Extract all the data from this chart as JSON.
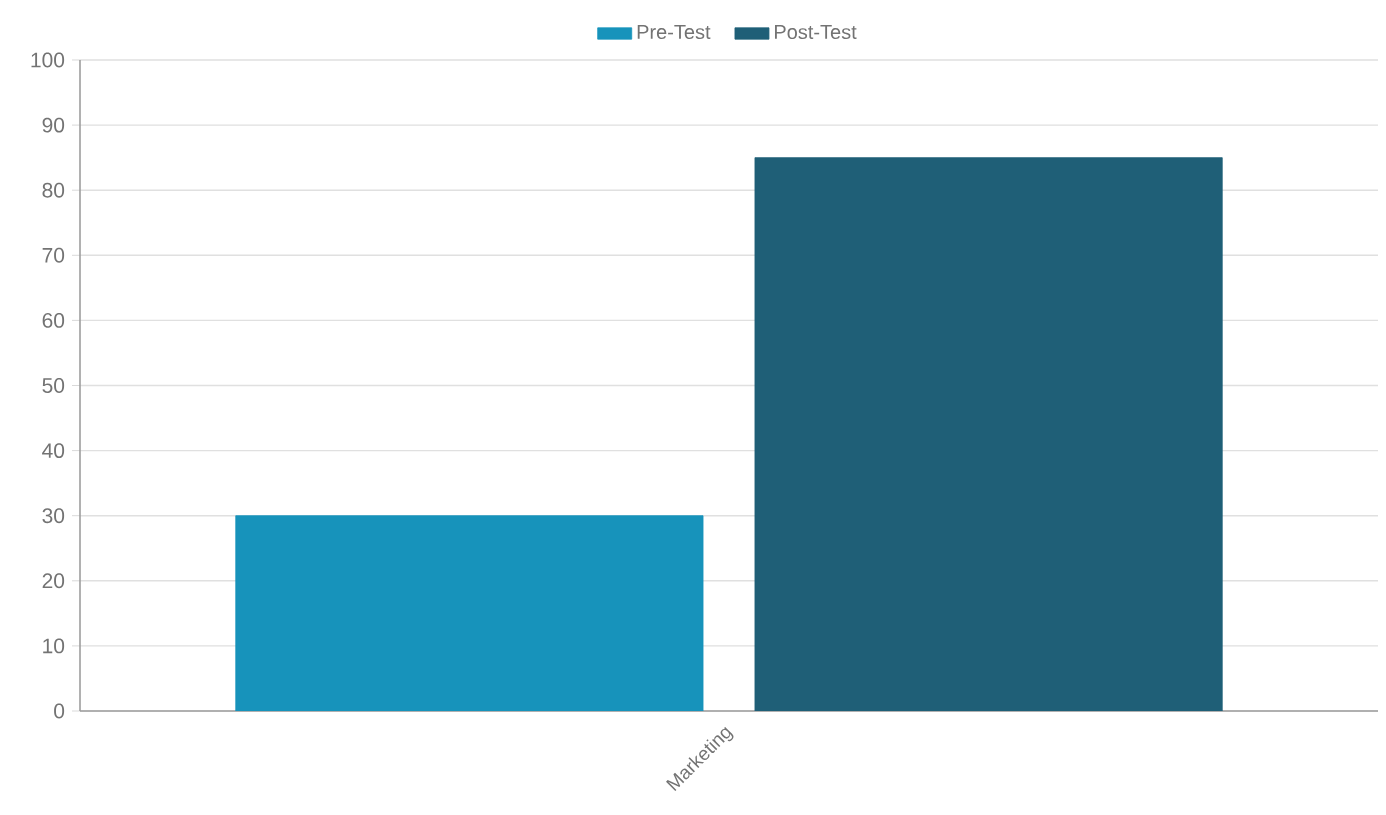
{
  "chart_data": {
    "type": "bar",
    "categories": [
      "Marketing"
    ],
    "series": [
      {
        "name": "Pre-Test",
        "color": "#1793bb",
        "values": [
          30
        ]
      },
      {
        "name": "Post-Test",
        "color": "#1f5f77",
        "values": [
          85
        ]
      }
    ],
    "ylim": [
      0,
      100
    ],
    "yticks": [
      0,
      10,
      20,
      30,
      40,
      50,
      60,
      70,
      80,
      90,
      100
    ],
    "grid": "y",
    "legend": "top"
  }
}
